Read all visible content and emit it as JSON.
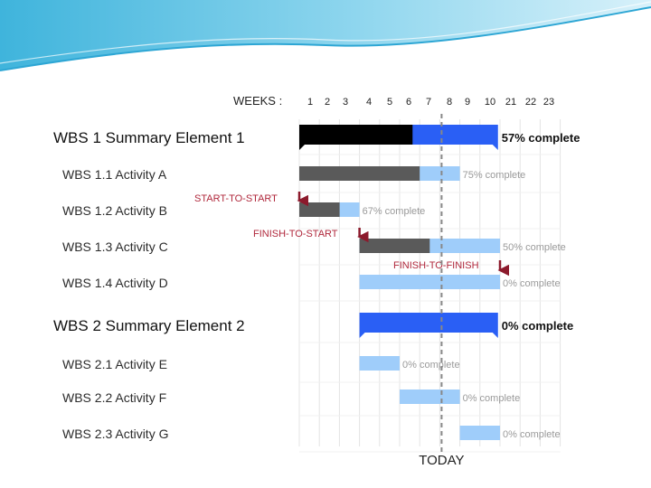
{
  "chart_data": {
    "type": "gantt",
    "weeks_label": "WEEKS :",
    "week_ticks": [
      "1",
      "2",
      "3",
      "4",
      "5",
      "6",
      "7",
      "8",
      "9",
      "10",
      "21",
      "22",
      "23"
    ],
    "today_label": "TODAY",
    "today_week": 8.0,
    "tasks": [
      {
        "label": "WBS 1 Summary Element 1",
        "summary": true,
        "start": 1,
        "end": 10.9,
        "percent_label": "57% complete",
        "complete": 0.57
      },
      {
        "label": "WBS 1.1 Activity A",
        "summary": false,
        "start": 1,
        "end": 9,
        "percent_label": "75% complete",
        "complete": 0.75
      },
      {
        "label": "WBS 1.2 Activity B",
        "summary": false,
        "start": 1,
        "end": 4,
        "percent_label": "67% complete",
        "complete": 0.67
      },
      {
        "label": "WBS 1.3 Activity C",
        "summary": false,
        "start": 4,
        "end": 11,
        "percent_label": "50% complete",
        "complete": 0.5
      },
      {
        "label": "WBS 1.4 Activity D",
        "summary": false,
        "start": 4,
        "end": 11,
        "percent_label": "0% complete",
        "complete": 0.0
      },
      {
        "label": "WBS 2 Summary Element 2",
        "summary": true,
        "start": 4,
        "end": 10.9,
        "percent_label": "0% complete",
        "complete": 0.0
      },
      {
        "label": "WBS 2.1 Activity E",
        "summary": false,
        "start": 4,
        "end": 6,
        "percent_label": "0% complete",
        "complete": 0.0
      },
      {
        "label": "WBS 2.2 Activity F",
        "summary": false,
        "start": 6,
        "end": 9,
        "percent_label": "0% complete",
        "complete": 0.0
      },
      {
        "label": "WBS 2.3 Activity G",
        "summary": false,
        "start": 9,
        "end": 11,
        "percent_label": "0% complete",
        "complete": 0.0
      }
    ],
    "dependencies": [
      {
        "label": "START-TO-START",
        "from_task": 1,
        "to_task": 2
      },
      {
        "label": "FINISH-TO-START",
        "from_task": 2,
        "to_task": 3
      },
      {
        "label": "FINISH-TO-FINISH",
        "from_task": 3,
        "to_task": 4
      }
    ],
    "colors": {
      "summary_done": "#000000",
      "summary_todo": "#2a5ff5",
      "activity_done": "#5a5a5a",
      "activity_todo": "#9fcdfa",
      "dependency": "#8c1a2c",
      "today_line": "#888888",
      "grid": "#e4e4e4"
    }
  }
}
